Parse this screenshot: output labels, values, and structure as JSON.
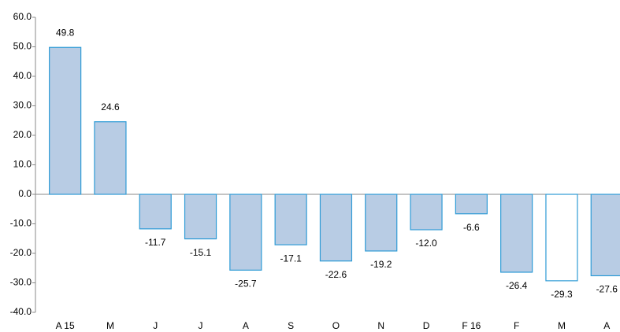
{
  "chart_data": {
    "type": "bar",
    "categories": [
      "A 15",
      "M",
      "J",
      "J",
      "A",
      "S",
      "O",
      "N",
      "D",
      "F 16",
      "F",
      "M",
      "A"
    ],
    "values": [
      49.8,
      24.6,
      -11.7,
      -15.1,
      -25.7,
      -17.1,
      -22.6,
      -19.2,
      -12.0,
      -6.6,
      -26.4,
      -29.3,
      -27.6
    ],
    "value_labels": [
      "49.8",
      "24.6",
      "-11.7",
      "-15.1",
      "-25.7",
      "-17.1",
      "-22.6",
      "-19.2",
      "-12.0",
      "-6.6",
      "-26.4",
      "-29.3",
      "-27.6"
    ],
    "colors": [
      "#b8cce4",
      "#b8cce4",
      "#b8cce4",
      "#b8cce4",
      "#b8cce4",
      "#b8cce4",
      "#b8cce4",
      "#b8cce4",
      "#b8cce4",
      "#b8cce4",
      "#b8cce4",
      "#ffffff",
      "#b8cce4"
    ],
    "edgecolor": "#2e9bd6",
    "ylim": [
      -40,
      60
    ],
    "yticks": [
      {
        "value": -40,
        "label": "-40.0"
      },
      {
        "value": -30,
        "label": "-30.0"
      },
      {
        "value": -20,
        "label": "-20.0"
      },
      {
        "value": -10,
        "label": "-10.0"
      },
      {
        "value": 0,
        "label": "0.0"
      },
      {
        "value": 10,
        "label": "10.0"
      },
      {
        "value": 20,
        "label": "20.0"
      },
      {
        "value": 30,
        "label": "30.0"
      },
      {
        "value": 40,
        "label": "40.0"
      },
      {
        "value": 50,
        "label": "50.0"
      },
      {
        "value": 60,
        "label": "60.0"
      }
    ],
    "grid": false
  }
}
